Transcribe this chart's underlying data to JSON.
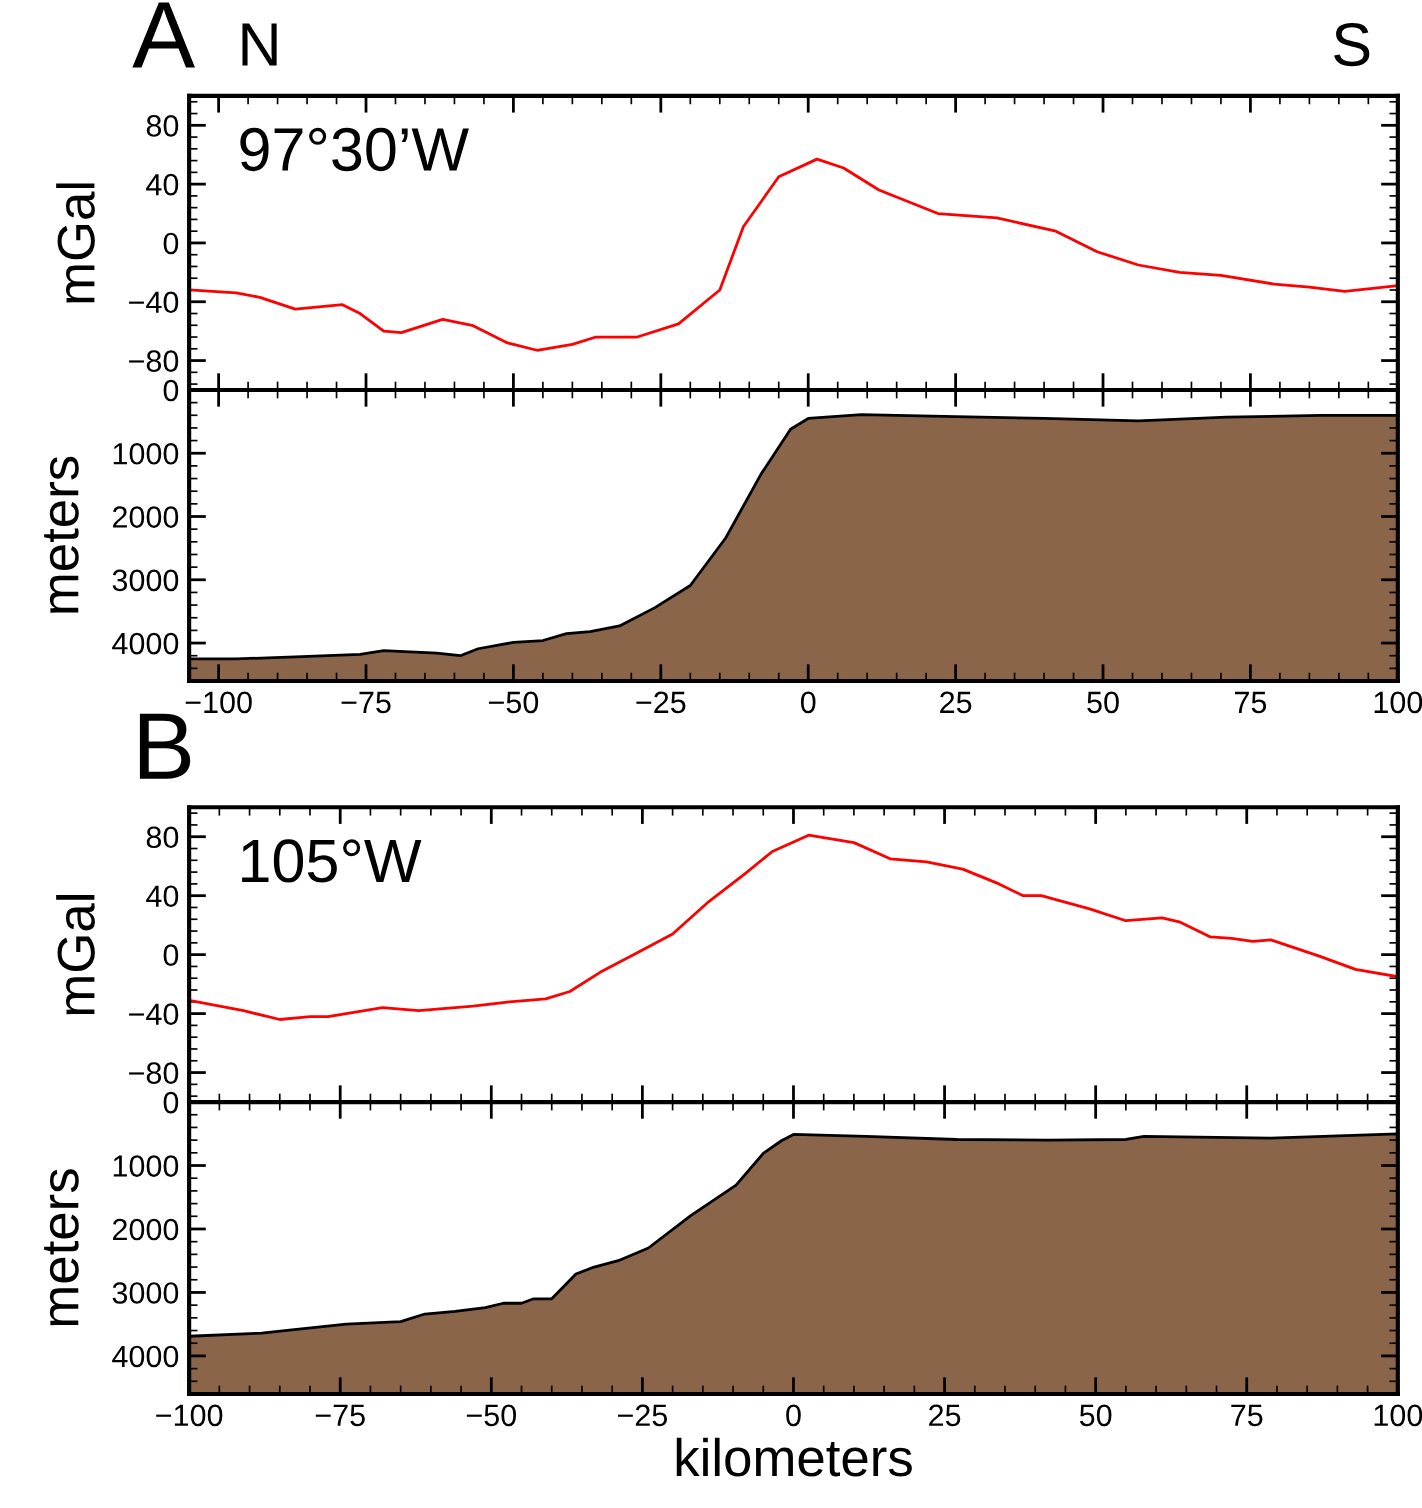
{
  "chart_data": [
    {
      "type": "line",
      "title": "A",
      "ylabel": "mGal",
      "annotations": [
        "N",
        "S",
        "97°30’W"
      ],
      "xlim": [
        -105,
        100
      ],
      "xticks": [
        -100,
        -75,
        -50,
        -25,
        0,
        25,
        50,
        75,
        100
      ],
      "ylim": [
        -100,
        100
      ],
      "yticks": [
        -80,
        -40,
        0,
        40,
        80
      ],
      "tick_labels": "y",
      "grid": false,
      "series": [
        {
          "color": "#ff0000",
          "x": [
            -105,
            -97,
            -93,
            -87,
            -79,
            -76,
            -72,
            -69,
            -62,
            -57,
            -51,
            -46,
            -40,
            -36,
            -29,
            -22,
            -15,
            -11,
            -5,
            1.5,
            6,
            12,
            22,
            32,
            42,
            49,
            56,
            63,
            70,
            79,
            85,
            91,
            100
          ],
          "values": [
            -32,
            -34,
            -37,
            -45,
            -42,
            -48,
            -60,
            -61,
            -52,
            -56,
            -68,
            -73,
            -69,
            -64,
            -64,
            -55,
            -32,
            11,
            45,
            57,
            51,
            36,
            20,
            17,
            8,
            -6,
            -15,
            -20,
            -22,
            -28,
            -30,
            -33,
            -29
          ]
        }
      ]
    },
    {
      "type": "area",
      "ylabel": "meters",
      "xlim": [
        -105,
        100
      ],
      "xticks": [
        -100,
        -75,
        -50,
        -25,
        0,
        25,
        50,
        75,
        100
      ],
      "ylim": [
        4600,
        0
      ],
      "yticks": [
        0,
        1000,
        2000,
        3000,
        4000
      ],
      "grid": false,
      "series": [
        {
          "color": "#8b654a",
          "x": [
            -105,
            -97,
            -87,
            -76,
            -72,
            -63,
            -59,
            -56,
            -50,
            -45,
            -41,
            -37,
            -32,
            -26,
            -20,
            -14,
            -8,
            -3,
            0,
            9,
            25,
            40,
            56,
            71,
            87,
            100
          ],
          "values": [
            4250,
            4250,
            4220,
            4180,
            4120,
            4160,
            4200,
            4090,
            3990,
            3960,
            3850,
            3820,
            3730,
            3440,
            3090,
            2340,
            1330,
            620,
            450,
            390,
            420,
            450,
            490,
            430,
            400,
            400
          ]
        }
      ]
    },
    {
      "type": "line",
      "title": "B",
      "ylabel": "mGal",
      "annotations": [
        "105°W"
      ],
      "xlim": [
        -100,
        100
      ],
      "xticks": [
        -100,
        -75,
        -50,
        -25,
        0,
        25,
        50,
        75,
        100
      ],
      "ylim": [
        -100,
        100
      ],
      "yticks": [
        -80,
        -40,
        0,
        40,
        80
      ],
      "tick_labels": "y",
      "grid": false,
      "series": [
        {
          "color": "#ff0000",
          "x": [
            -100,
            -91,
            -85,
            -80,
            -77,
            -68,
            -62,
            -53,
            -47,
            -41,
            -37,
            -32,
            -26,
            -20,
            -14,
            -8,
            -3.5,
            2.5,
            10,
            16,
            22,
            28,
            34,
            38,
            41,
            49,
            55,
            61,
            64,
            69,
            72.5,
            76,
            79,
            87,
            93,
            100
          ],
          "values": [
            -31,
            -38,
            -44,
            -42,
            -42,
            -36,
            -38,
            -35,
            -32,
            -30,
            -25,
            -12,
            1,
            14,
            36,
            55,
            70,
            81,
            76,
            65,
            63,
            58,
            48,
            40,
            40,
            31,
            23,
            25,
            22,
            12,
            11,
            9,
            10,
            -1,
            -10,
            -15
          ]
        }
      ]
    },
    {
      "type": "area",
      "ylabel": "meters",
      "xlabel": "kilometers",
      "xlim": [
        -100,
        100
      ],
      "xticks": [
        -100,
        -75,
        -50,
        -25,
        0,
        25,
        50,
        75,
        100
      ],
      "ylim": [
        4600,
        0
      ],
      "yticks": [
        0,
        1000,
        2000,
        3000,
        4000
      ],
      "grid": false,
      "series": [
        {
          "color": "#8b654a",
          "x": [
            -100,
            -88,
            -83,
            -74,
            -65,
            -61,
            -56,
            -51,
            -48,
            -45,
            -43,
            -40,
            -36,
            -33,
            -29,
            -24,
            -17,
            -9.5,
            -5,
            -2,
            0,
            12,
            27,
            42,
            55,
            58,
            79,
            100
          ],
          "values": [
            3690,
            3640,
            3590,
            3500,
            3460,
            3340,
            3300,
            3240,
            3170,
            3170,
            3100,
            3100,
            2710,
            2600,
            2500,
            2300,
            1790,
            1310,
            810,
            610,
            510,
            540,
            590,
            600,
            590,
            540,
            570,
            500
          ]
        }
      ]
    }
  ]
}
